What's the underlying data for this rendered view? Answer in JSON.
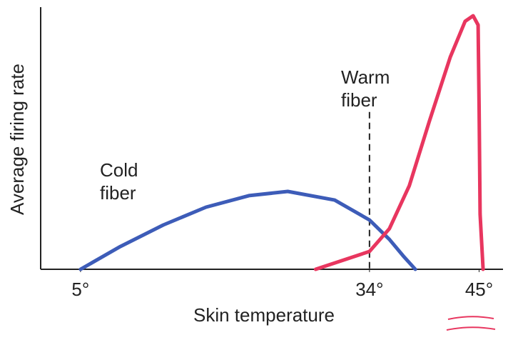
{
  "chart_data": {
    "type": "line",
    "xlabel": "Skin temperature",
    "ylabel": "Average firing rate",
    "xlim": [
      1,
      47.4
    ],
    "ylim": [
      0,
      100
    ],
    "xticks": [
      {
        "value": 5,
        "label": "5°"
      },
      {
        "value": 34,
        "label": "34°"
      },
      {
        "value": 45,
        "label": "45°"
      }
    ],
    "yticks": [],
    "grid": false,
    "vline": {
      "x": 34,
      "ymax": 60
    },
    "series": [
      {
        "name": "Cold fiber",
        "color": "#3d5cb8",
        "x": [
          5,
          9,
          13.3,
          17.6,
          21.9,
          25.8,
          30.5,
          34,
          36,
          37.5,
          38.6
        ],
        "values": [
          0,
          8.7,
          16.9,
          23.7,
          28.1,
          29.7,
          26.4,
          18.8,
          11.4,
          4.6,
          0
        ]
      },
      {
        "name": "Warm fiber",
        "color": "#e8365f",
        "x": [
          28.6,
          34,
          36,
          38,
          40,
          42.1,
          43.6,
          44.4,
          44.9,
          45,
          45.1,
          45.4
        ],
        "values": [
          0,
          6.8,
          15.5,
          31.9,
          56.4,
          80.9,
          94.6,
          96.7,
          93.2,
          61.9,
          21,
          0
        ]
      }
    ]
  }
}
